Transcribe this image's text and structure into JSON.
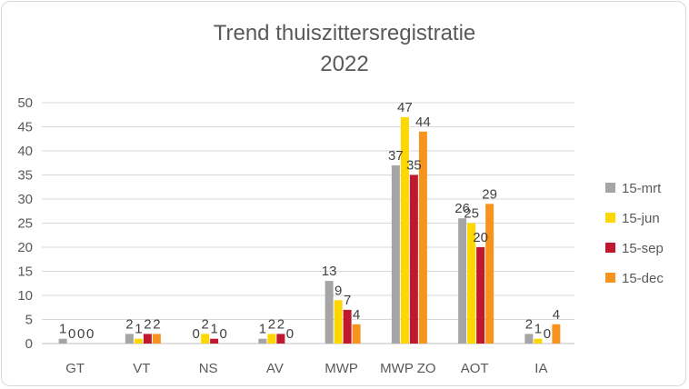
{
  "chart_data": {
    "type": "bar",
    "title": [
      "Trend thuiszittersregistratie",
      "2022"
    ],
    "categories": [
      "GT",
      "VT",
      "NS",
      "AV",
      "MWP",
      "MWP ZO",
      "AOT",
      "IA"
    ],
    "series": [
      {
        "name": "15-mrt",
        "color": "#a5a5a5",
        "values": [
          1,
          2,
          0,
          1,
          13,
          37,
          26,
          2
        ]
      },
      {
        "name": "15-jun",
        "color": "#ffd700",
        "values": [
          0,
          1,
          2,
          2,
          9,
          47,
          25,
          1
        ]
      },
      {
        "name": "15-sep",
        "color": "#c0182e",
        "values": [
          0,
          2,
          1,
          2,
          7,
          35,
          20,
          0
        ]
      },
      {
        "name": "15-dec",
        "color": "#f7941d",
        "values": [
          0,
          2,
          0,
          0,
          4,
          44,
          29,
          4
        ]
      }
    ],
    "ylim": [
      0,
      50
    ],
    "yticks": [
      0,
      5,
      10,
      15,
      20,
      25,
      30,
      35,
      40,
      45,
      50
    ],
    "grid": true,
    "legend": "right"
  }
}
